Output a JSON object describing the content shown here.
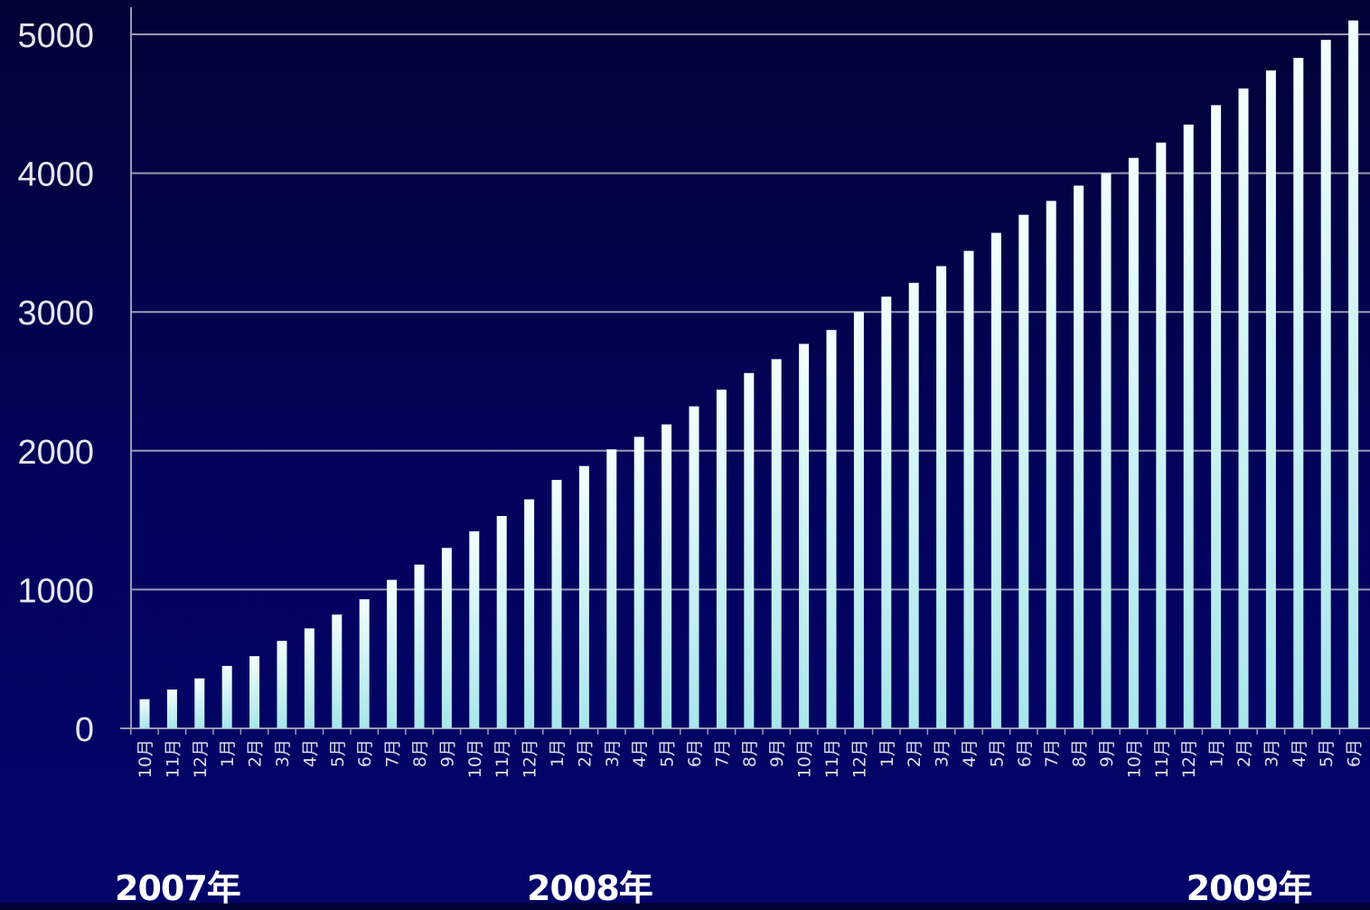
{
  "chart_data": {
    "type": "bar",
    "title": "",
    "xlabel": "",
    "ylabel": "",
    "ylim": [
      0,
      5000
    ],
    "yticks": [
      0,
      1000,
      2000,
      3000,
      4000,
      5000
    ],
    "grid": true,
    "legend": "none",
    "categories": [
      "10月",
      "11月",
      "12月",
      "1月",
      "2月",
      "3月",
      "4月",
      "5月",
      "6月",
      "7月",
      "8月",
      "9月",
      "10月",
      "11月",
      "12月",
      "1月",
      "2月",
      "3月",
      "4月",
      "5月",
      "6月",
      "7月",
      "8月",
      "9月",
      "10月",
      "11月",
      "12月",
      "1月",
      "2月",
      "3月",
      "4月",
      "5月",
      "6月",
      "7月",
      "8月",
      "9月",
      "10月",
      "11月",
      "12月",
      "1月",
      "2月",
      "3月",
      "4月",
      "5月",
      "6月"
    ],
    "values": [
      210,
      280,
      360,
      450,
      520,
      630,
      720,
      820,
      930,
      1070,
      1180,
      1300,
      1420,
      1530,
      1650,
      1790,
      1890,
      2010,
      2100,
      2190,
      2320,
      2440,
      2560,
      2660,
      2770,
      2870,
      3000,
      3110,
      3210,
      3330,
      3440,
      3570,
      3700,
      3800,
      3910,
      4000,
      4110,
      4220,
      4350,
      4490,
      4610,
      4740,
      4830,
      4960,
      5100
    ],
    "year_labels": [
      {
        "text": "2007年",
        "index": 0
      },
      {
        "text": "2008年",
        "index": 15
      },
      {
        "text": "2009年",
        "index": 39
      }
    ],
    "colors": {
      "bar_top": "#f2ffff",
      "bar_bottom": "#a8e6ea",
      "grid": "#9a9ab4",
      "axis_text": "#e6e6ee",
      "category_text": "#dcdce6",
      "year_text": "#ffffff"
    }
  }
}
